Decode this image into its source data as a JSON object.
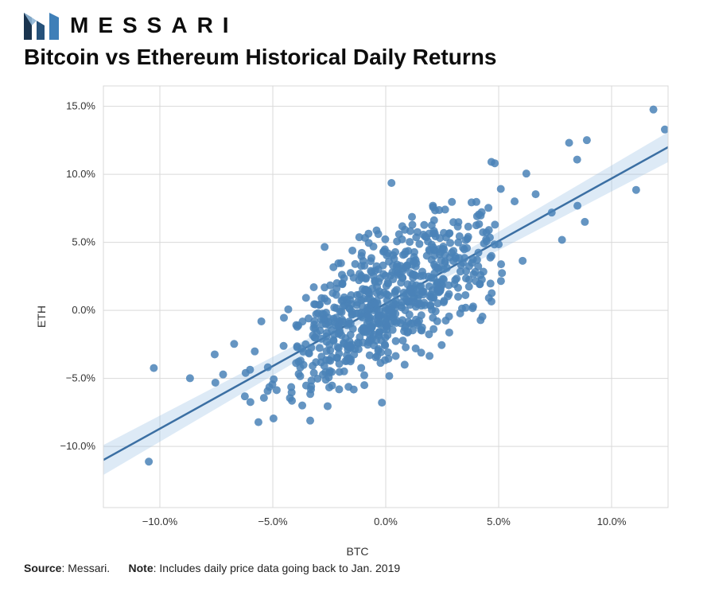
{
  "brand": {
    "name": "MESSARI"
  },
  "title": "Bitcoin vs Ethereum Historical Daily Returns",
  "footer": {
    "source_label": "Source",
    "source_value": ": Messari.",
    "note_label": "Note",
    "note_value": ": Includes daily price data going back to Jan. 2019"
  },
  "chart": {
    "type": "scatter",
    "xlabel": "BTC",
    "ylabel": "ETH",
    "xlim": [
      -12.5,
      12.5
    ],
    "ylim": [
      -14.5,
      16.5
    ],
    "xticks": [
      -10,
      -5,
      0,
      5,
      10
    ],
    "yticks": [
      -10,
      -5,
      0,
      5,
      10,
      15
    ],
    "tick_suffix": ".0%",
    "tick_fontsize": 13,
    "label_fontsize": 14,
    "background_color": "#ffffff",
    "grid_color": "#d9d9d9",
    "border_color": "#d9d9d9",
    "marker_color": "#4a83b7",
    "marker_opacity": 0.85,
    "marker_radius": 5,
    "regression": {
      "line_color": "#3b6fa3",
      "line_width": 2.5,
      "band_color": "#9fc3e4",
      "band_opacity": 0.35,
      "slope": 0.92,
      "intercept": 0.5,
      "band_half_width_at_0": 0.4,
      "band_half_width_at_ends": 1.1
    },
    "n_points": 720,
    "noise_sd": 2.4,
    "seed": 42
  }
}
